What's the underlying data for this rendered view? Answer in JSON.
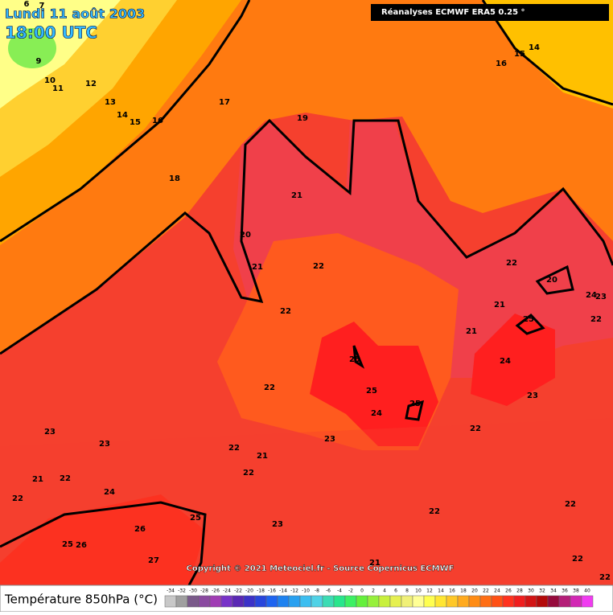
{
  "header": {
    "date": "Lundi 11 août 2003",
    "time": "18:00 UTC",
    "source": "Réanalyses ECMWF ERA5 0.25 °"
  },
  "copyright": "Copyright © 2021 Meteociel.fr - Source Copernicus ECMWF",
  "legend": {
    "title": "Température 850hPa (°C)",
    "ticks": [
      -34,
      -32,
      -30,
      -28,
      -26,
      -24,
      -22,
      -20,
      -18,
      -16,
      -14,
      -12,
      -10,
      -8,
      -6,
      -4,
      -2,
      0,
      2,
      4,
      6,
      8,
      10,
      12,
      14,
      16,
      18,
      20,
      22,
      24,
      26,
      28,
      30,
      32,
      34,
      36,
      38,
      40
    ],
    "colors": [
      "#c8c8c8",
      "#a0a0a0",
      "#7a5a8a",
      "#8a4aa0",
      "#a03cb4",
      "#7832c8",
      "#5a28b4",
      "#3c32c8",
      "#2846dc",
      "#1e64f0",
      "#1e82f0",
      "#28a0f0",
      "#3cbef0",
      "#50d2e6",
      "#3cdcb4",
      "#28e68c",
      "#3cf064",
      "#64f03c",
      "#96f03c",
      "#c8f03c",
      "#e6f050",
      "#f0f078",
      "#ffff96",
      "#ffff50",
      "#ffe632",
      "#ffc828",
      "#ffaa1e",
      "#ff8c14",
      "#ff6e14",
      "#ff5014",
      "#ff321e",
      "#f01e1e",
      "#d21414",
      "#b40a0a",
      "#960a3c",
      "#b41e78",
      "#d228b4",
      "#f03cf0"
    ]
  },
  "contour_labels": [
    6,
    7,
    9,
    10,
    11,
    12,
    13,
    14,
    15,
    16,
    17,
    18,
    19,
    20,
    21,
    21,
    22,
    22,
    25,
    25,
    24,
    25,
    22,
    23,
    22,
    21,
    22,
    23,
    23,
    21,
    22,
    22,
    24,
    25,
    26,
    25,
    26,
    27,
    23,
    22,
    21,
    22,
    21,
    21,
    20,
    22,
    25,
    24,
    23,
    24,
    23,
    22,
    22,
    22,
    22,
    16,
    15,
    14
  ]
}
